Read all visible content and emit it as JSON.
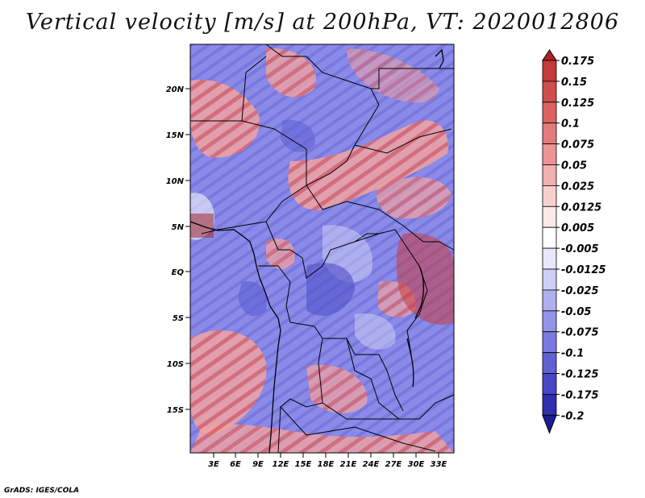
{
  "title": "Vertical velocity [m/s] at 200hPa, VT: 2020012806",
  "credit": "GrADS: IGES/COLA",
  "lat_labels": [
    "20N",
    "15N",
    "10N",
    "5N",
    "EQ",
    "5S",
    "10S",
    "15S"
  ],
  "lon_labels": [
    "3E",
    "6E",
    "9E",
    "12E",
    "15E",
    "18E",
    "21E",
    "24E",
    "27E",
    "30E",
    "33E"
  ],
  "colorbar": {
    "labels": [
      "0.175",
      "0.15",
      "0.125",
      "0.1",
      "0.075",
      "0.05",
      "0.025",
      "0.0125",
      "0.005",
      "-0.005",
      "-0.0125",
      "-0.025",
      "-0.05",
      "-0.075",
      "-0.1",
      "-0.125",
      "-0.175",
      "-0.2"
    ],
    "colors": [
      "#b22222",
      "#c43a3a",
      "#d24c4c",
      "#dd6262",
      "#e47a7a",
      "#ec9494",
      "#f2b0b0",
      "#f8cfcf",
      "#fde9e9",
      "#ffffff",
      "#e8e8fb",
      "#cfcff6",
      "#b0b0f0",
      "#9494ea",
      "#7a7ae2",
      "#6060d6",
      "#4747c6",
      "#2f2fae",
      "#1c1c94"
    ]
  },
  "field_colors": {
    "blue": "#7b7be6",
    "red": "#ec8f8f",
    "white": "#f4f4fb"
  }
}
